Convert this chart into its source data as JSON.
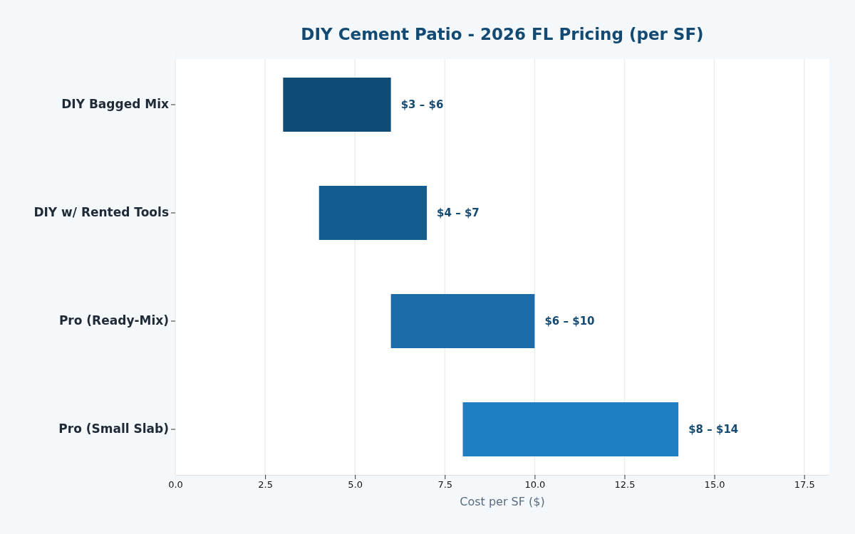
{
  "chart_data": {
    "type": "bar",
    "orientation": "horizontal",
    "title": "DIY Cement Patio - 2026 FL Pricing (per SF)",
    "xlabel": "Cost per SF ($)",
    "categories": [
      "DIY Bagged Mix",
      "DIY w/ Rented Tools",
      "Pro (Ready-Mix)",
      "Pro (Small Slab)"
    ],
    "base": [
      3,
      4,
      6,
      8
    ],
    "values": [
      3,
      3,
      4,
      6
    ],
    "colors": [
      "#0f4c75",
      "#135c8f",
      "#1b6ca8",
      "#1f7fc2"
    ],
    "annotations": [
      {
        "text": "$3 – $6",
        "x": 6,
        "y": "DIY Bagged Mix"
      },
      {
        "text": "$4 – $7",
        "x": 7,
        "y": "DIY w/ Rented Tools"
      },
      {
        "text": "$6 – $10",
        "x": 10,
        "y": "Pro (Ready-Mix)"
      },
      {
        "text": "$8 – $14",
        "x": 14,
        "y": "Pro (Small Slab)"
      }
    ],
    "xlim": [
      0,
      18.2
    ],
    "xticks": [
      {
        "value": 0,
        "label": "0.0"
      },
      {
        "value": 2.5,
        "label": "2.5"
      },
      {
        "value": 5,
        "label": "5.0"
      },
      {
        "value": 7.5,
        "label": "7.5"
      },
      {
        "value": 10,
        "label": "10.0"
      },
      {
        "value": 12.5,
        "label": "12.5"
      },
      {
        "value": 15,
        "label": "15.0"
      },
      {
        "value": 17.5,
        "label": "17.5"
      }
    ],
    "grid": "x"
  }
}
